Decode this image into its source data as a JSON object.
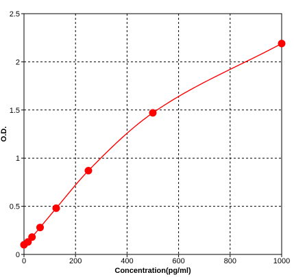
{
  "chart_data": {
    "type": "scatter",
    "title": "",
    "xlabel": "Concentration(pg/ml)",
    "ylabel": "O.D.",
    "xlim": [
      0,
      1000
    ],
    "ylim": [
      0,
      2.5
    ],
    "xticks": [
      0,
      200,
      400,
      600,
      800,
      1000
    ],
    "xtick_labels": [
      "0",
      "200",
      "400",
      "600",
      "800",
      "1000"
    ],
    "yticks": [
      0,
      0.5,
      1,
      1.5,
      2,
      2.5
    ],
    "ytick_labels": [
      "0",
      "0.5",
      "1",
      "1.5",
      "2",
      "2.5"
    ],
    "grid": true,
    "grid_style": "dashed",
    "legend": "none",
    "series": [
      {
        "points": [
          {
            "x": 0,
            "y": 0.1
          },
          {
            "x": 15.6,
            "y": 0.13
          },
          {
            "x": 31.2,
            "y": 0.18
          },
          {
            "x": 62.5,
            "y": 0.28
          },
          {
            "x": 125,
            "y": 0.48
          },
          {
            "x": 250,
            "y": 0.87
          },
          {
            "x": 500,
            "y": 1.47
          },
          {
            "x": 1000,
            "y": 2.19
          }
        ],
        "fit": "smooth-curve"
      }
    ],
    "colors": {
      "series": "#ff0000",
      "grid": "#000000",
      "axis": "#000000",
      "background": "#ffffff"
    }
  }
}
